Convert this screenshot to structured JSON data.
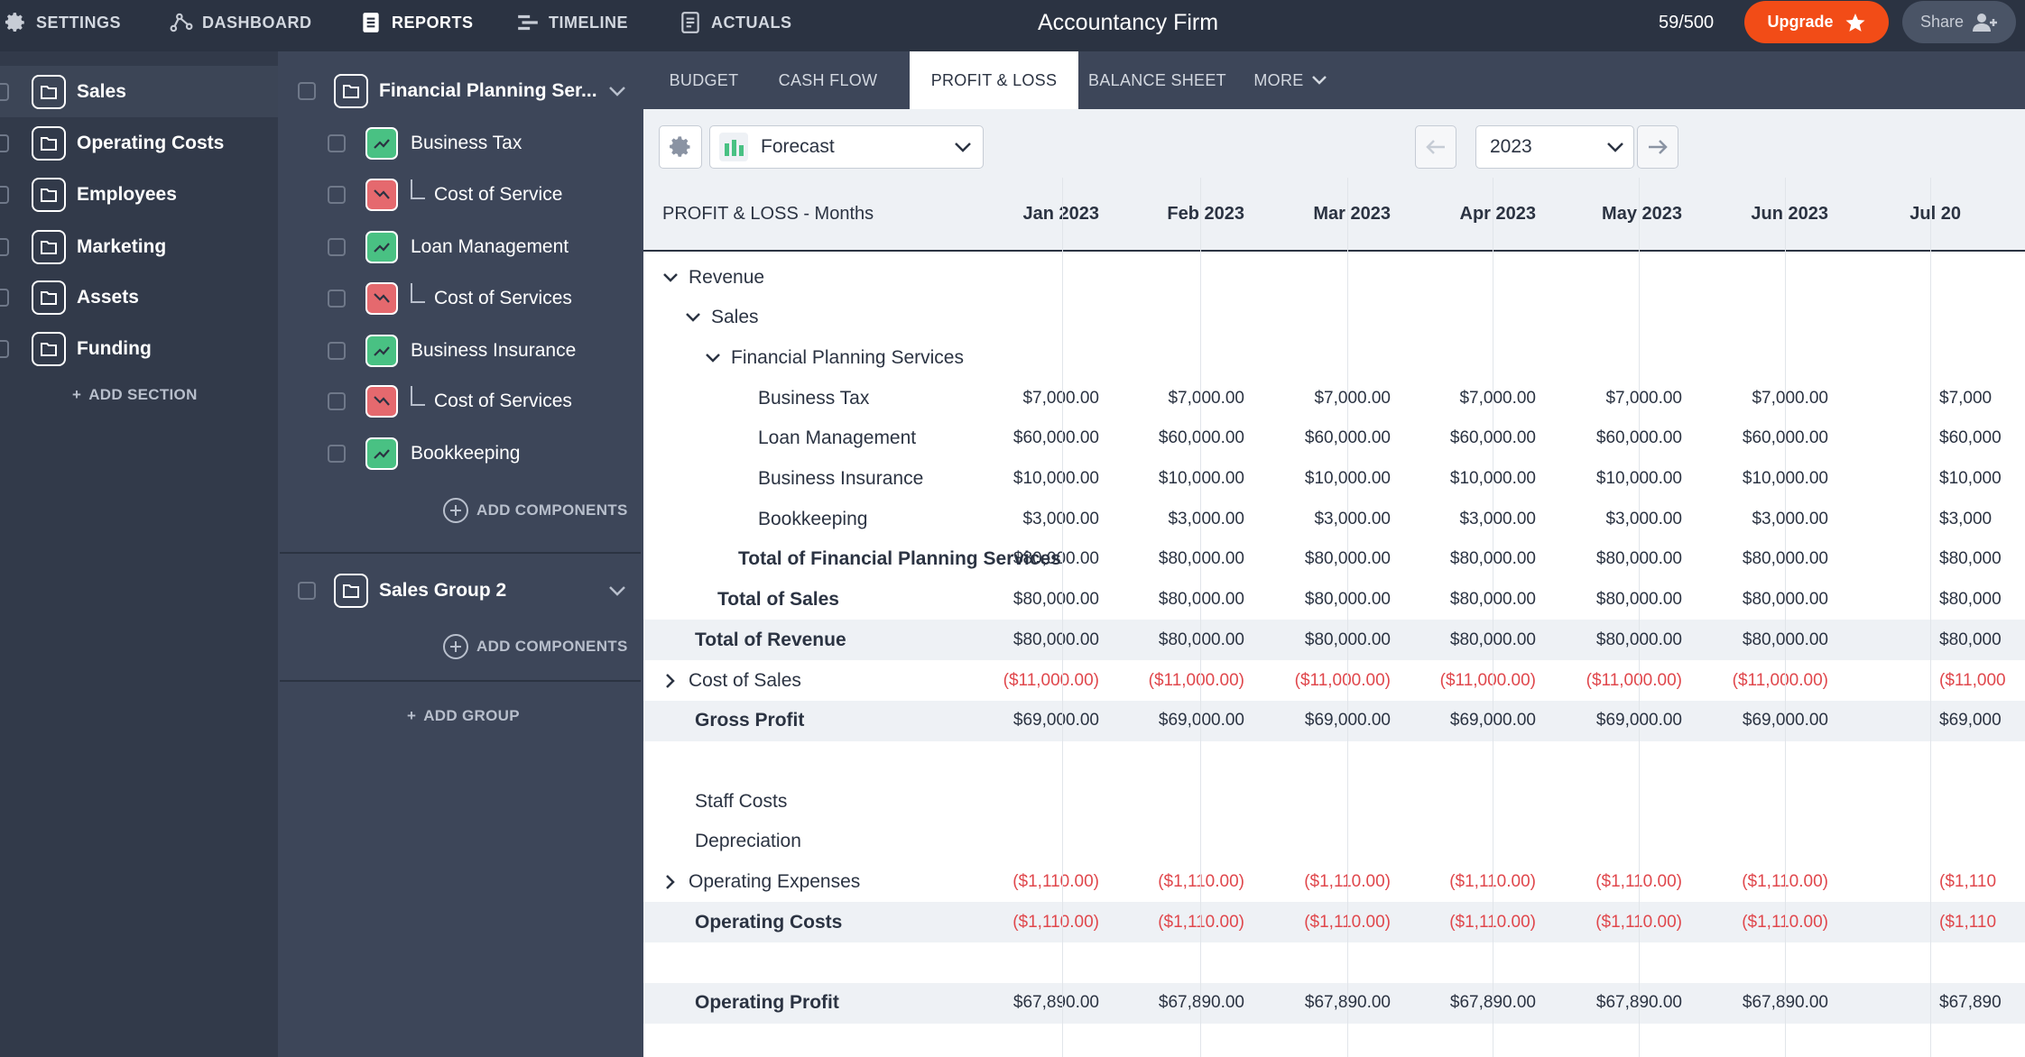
{
  "nav": {
    "settings": "SETTINGS",
    "dashboard": "DASHBOARD",
    "reports": "REPORTS",
    "timeline": "TIMELINE",
    "actuals": "ACTUALS"
  },
  "app_title": "Accountancy Firm",
  "usage_counter": "59/500",
  "upgrade_label": "Upgrade",
  "share_label": "Share",
  "sections": [
    {
      "label": "Sales",
      "active": true
    },
    {
      "label": "Operating Costs"
    },
    {
      "label": "Employees"
    },
    {
      "label": "Marketing"
    },
    {
      "label": "Assets"
    },
    {
      "label": "Funding"
    }
  ],
  "add_section_label": "ADD SECTION",
  "groups": [
    {
      "name": "Financial Planning Ser...",
      "components": [
        {
          "label": "Business Tax",
          "kind": "revenue"
        },
        {
          "label": "Cost of Service",
          "kind": "cost"
        },
        {
          "label": "Loan Management",
          "kind": "revenue"
        },
        {
          "label": "Cost of Services",
          "kind": "cost"
        },
        {
          "label": "Business Insurance",
          "kind": "revenue"
        },
        {
          "label": "Cost of Services",
          "kind": "cost"
        },
        {
          "label": "Bookkeeping",
          "kind": "revenue"
        }
      ]
    },
    {
      "name": "Sales Group 2",
      "components": []
    }
  ],
  "add_components_label": "ADD COMPONENTS",
  "add_group_label": "ADD GROUP",
  "tabs": [
    "BUDGET",
    "CASH FLOW",
    "PROFIT & LOSS",
    "BALANCE SHEET",
    "MORE"
  ],
  "active_tab": "PROFIT & LOSS",
  "toolbar": {
    "view_select": "Forecast",
    "year_select": "2023"
  },
  "table": {
    "header_label": "PROFIT & LOSS - Months",
    "columns": [
      "Jan 2023",
      "Feb 2023",
      "Mar 2023",
      "Apr 2023",
      "May 2023",
      "Jun 2023",
      "Jul 20"
    ],
    "rows": [
      {
        "label": "Revenue",
        "indent": 0,
        "toggle": "down",
        "values": []
      },
      {
        "label": "Sales",
        "indent": 1,
        "toggle": "down",
        "values": []
      },
      {
        "label": "Financial Planning Services",
        "indent": 2,
        "toggle": "down",
        "values": []
      },
      {
        "label": "Business Tax",
        "indent": 3,
        "values": [
          "$7,000.00",
          "$7,000.00",
          "$7,000.00",
          "$7,000.00",
          "$7,000.00",
          "$7,000.00",
          "$7,000"
        ]
      },
      {
        "label": "Loan Management",
        "indent": 3,
        "values": [
          "$60,000.00",
          "$60,000.00",
          "$60,000.00",
          "$60,000.00",
          "$60,000.00",
          "$60,000.00",
          "$60,000"
        ]
      },
      {
        "label": "Business Insurance",
        "indent": 3,
        "values": [
          "$10,000.00",
          "$10,000.00",
          "$10,000.00",
          "$10,000.00",
          "$10,000.00",
          "$10,000.00",
          "$10,000"
        ]
      },
      {
        "label": "Bookkeeping",
        "indent": 3,
        "values": [
          "$3,000.00",
          "$3,000.00",
          "$3,000.00",
          "$3,000.00",
          "$3,000.00",
          "$3,000.00",
          "$3,000"
        ]
      },
      {
        "label": "Total of Financial Planning Services",
        "indent": "total2",
        "bold": true,
        "values": [
          "$80,000.00",
          "$80,000.00",
          "$80,000.00",
          "$80,000.00",
          "$80,000.00",
          "$80,000.00",
          "$80,000"
        ]
      },
      {
        "label": "Total of Sales",
        "indent": "total1",
        "bold": true,
        "values": [
          "$80,000.00",
          "$80,000.00",
          "$80,000.00",
          "$80,000.00",
          "$80,000.00",
          "$80,000.00",
          "$80,000"
        ]
      },
      {
        "label": "Total of Revenue",
        "indent": "total0",
        "bold": true,
        "shaded": true,
        "values": [
          "$80,000.00",
          "$80,000.00",
          "$80,000.00",
          "$80,000.00",
          "$80,000.00",
          "$80,000.00",
          "$80,000"
        ]
      },
      {
        "label": "Cost of Sales",
        "indent": 0,
        "toggle": "right",
        "negative": true,
        "values": [
          "($11,000.00)",
          "($11,000.00)",
          "($11,000.00)",
          "($11,000.00)",
          "($11,000.00)",
          "($11,000.00)",
          "($11,000"
        ]
      },
      {
        "label": "Gross Profit",
        "indent": "total0",
        "bold": true,
        "shaded": true,
        "values": [
          "$69,000.00",
          "$69,000.00",
          "$69,000.00",
          "$69,000.00",
          "$69,000.00",
          "$69,000.00",
          "$69,000"
        ]
      },
      {
        "label": "",
        "indent": 0,
        "values": []
      },
      {
        "label": "Staff Costs",
        "indent": "total0",
        "values": []
      },
      {
        "label": "Depreciation",
        "indent": "total0",
        "values": []
      },
      {
        "label": "Operating Expenses",
        "indent": 0,
        "toggle": "right",
        "negative": true,
        "values": [
          "($1,110.00)",
          "($1,110.00)",
          "($1,110.00)",
          "($1,110.00)",
          "($1,110.00)",
          "($1,110.00)",
          "($1,110"
        ]
      },
      {
        "label": "Operating Costs",
        "indent": "total0",
        "bold": true,
        "shaded": true,
        "negative": true,
        "values": [
          "($1,110.00)",
          "($1,110.00)",
          "($1,110.00)",
          "($1,110.00)",
          "($1,110.00)",
          "($1,110.00)",
          "($1,110"
        ]
      },
      {
        "label": "",
        "indent": 0,
        "values": []
      },
      {
        "label": "Operating Profit",
        "indent": "total0",
        "bold": true,
        "shaded": true,
        "values": [
          "$67,890.00",
          "$67,890.00",
          "$67,890.00",
          "$67,890.00",
          "$67,890.00",
          "$67,890.00",
          "$67,890"
        ]
      }
    ]
  },
  "colors": {
    "topbar": "#2b3342",
    "upgrade": "#f24c17",
    "revenue_icon": "#49c183",
    "cost_icon": "#e5696e",
    "negative_text": "#e0474c"
  }
}
